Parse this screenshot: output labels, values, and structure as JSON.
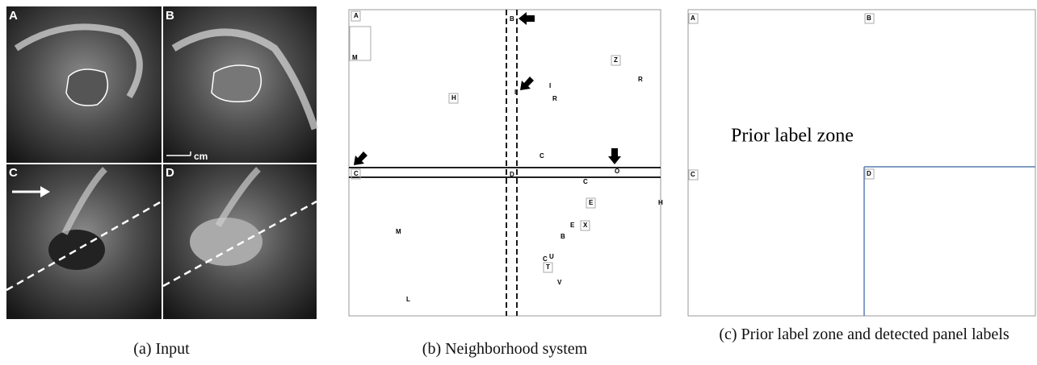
{
  "panels": [
    {
      "caption": "(a) Input",
      "labels": [
        "A",
        "B",
        "C",
        "D"
      ],
      "scale_label": "cm"
    },
    {
      "caption": "(b) Neighborhood system",
      "labels": [
        "A",
        "B",
        "M",
        "H",
        "I",
        "I",
        "R",
        "Z",
        "R",
        "C",
        "O",
        "C",
        "D",
        "C",
        "E",
        "H",
        "M",
        "E",
        "X",
        "B",
        "C",
        "U",
        "T",
        "V",
        "L"
      ]
    },
    {
      "caption": "(c) Prior label zone and detected panel labels",
      "zone_label": "Prior label zone",
      "labels": [
        "A",
        "B",
        "C",
        "D"
      ]
    }
  ]
}
